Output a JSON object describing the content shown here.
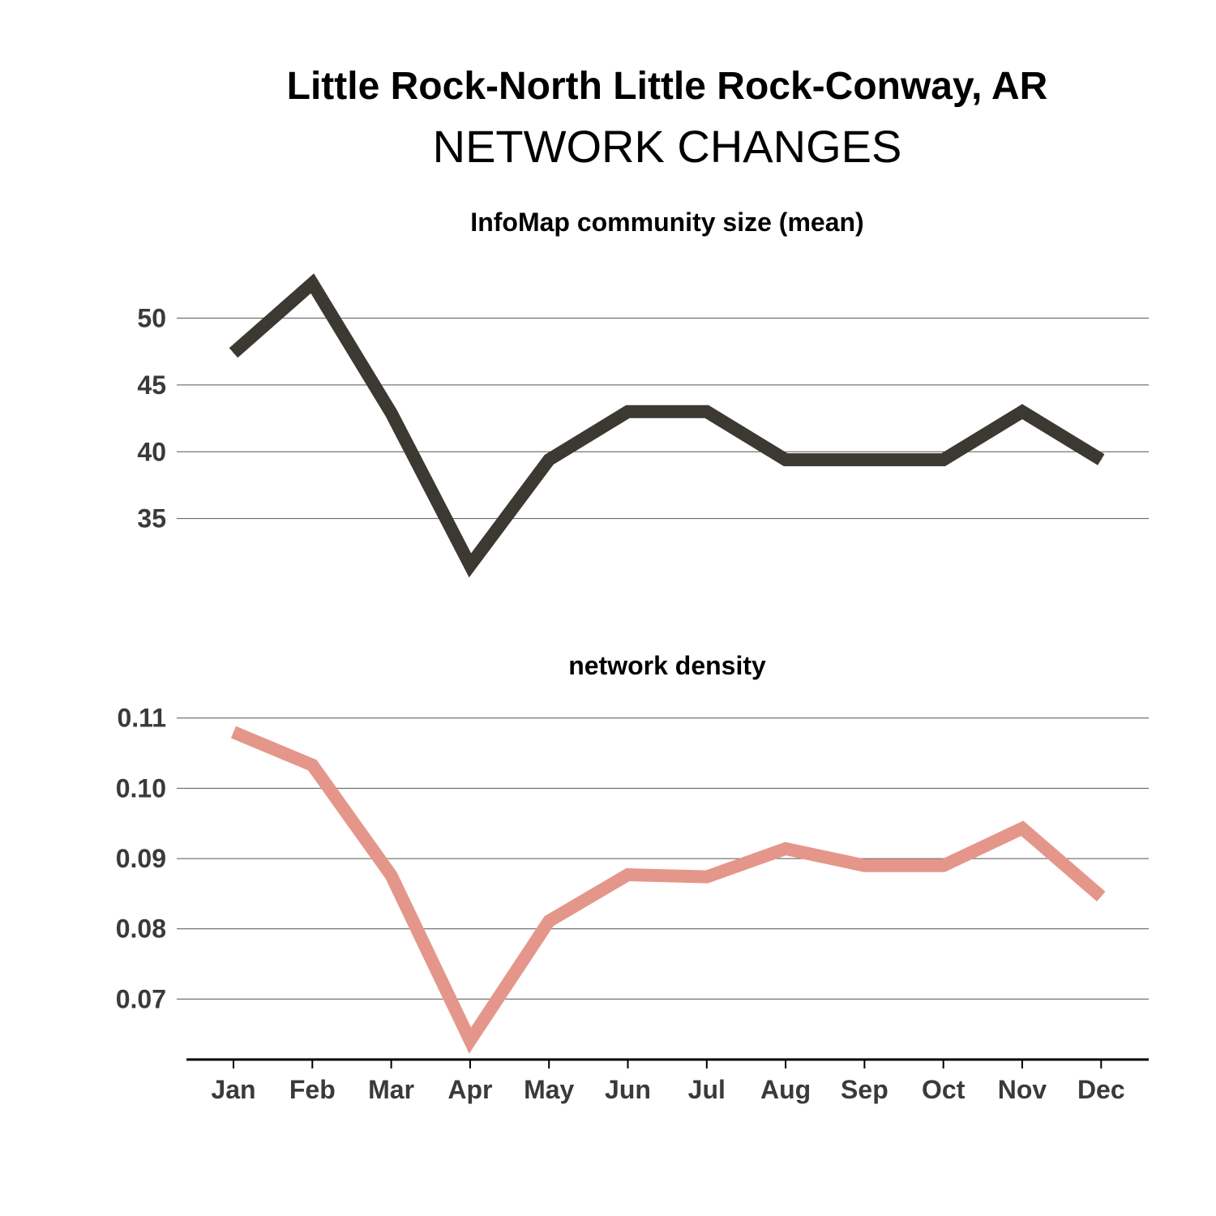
{
  "header": {
    "title": "Little Rock-North Little Rock-Conway, AR",
    "subtitle": "NETWORK CHANGES"
  },
  "chart_data": [
    {
      "type": "line",
      "title": "InfoMap community size (mean)",
      "categories": [
        "Jan",
        "Feb",
        "Mar",
        "Apr",
        "May",
        "Jun",
        "Jul",
        "Aug",
        "Sep",
        "Oct",
        "Nov",
        "Dec"
      ],
      "series": [
        {
          "values": [
            47.4,
            52.6,
            42.9,
            31.5,
            39.4,
            43.0,
            43.0,
            39.4,
            39.4,
            39.4,
            43.0,
            39.4
          ],
          "color": "#3b3932"
        }
      ],
      "yticks": [
        35,
        40,
        45,
        50
      ],
      "ylim": [
        27.7,
        55
      ],
      "grid": "horizontal",
      "legend": "none"
    },
    {
      "type": "line",
      "title": "network density",
      "categories": [
        "Jan",
        "Feb",
        "Mar",
        "Apr",
        "May",
        "Jun",
        "Jul",
        "Aug",
        "Sep",
        "Oct",
        "Nov",
        "Dec"
      ],
      "series": [
        {
          "values": [
            0.108,
            0.1033,
            0.0876,
            0.0641,
            0.0811,
            0.0877,
            0.0874,
            0.0914,
            0.089,
            0.089,
            0.0943,
            0.0846
          ],
          "color": "#e5968a"
        }
      ],
      "yticks": [
        0.07,
        0.08,
        0.09,
        0.1,
        0.11
      ],
      "ytick_labels": [
        "0.07",
        "0.08",
        "0.09",
        "0.10",
        "0.11"
      ],
      "ylim": [
        0.0622,
        0.1147
      ],
      "grid": "horizontal",
      "legend": "none"
    }
  ]
}
